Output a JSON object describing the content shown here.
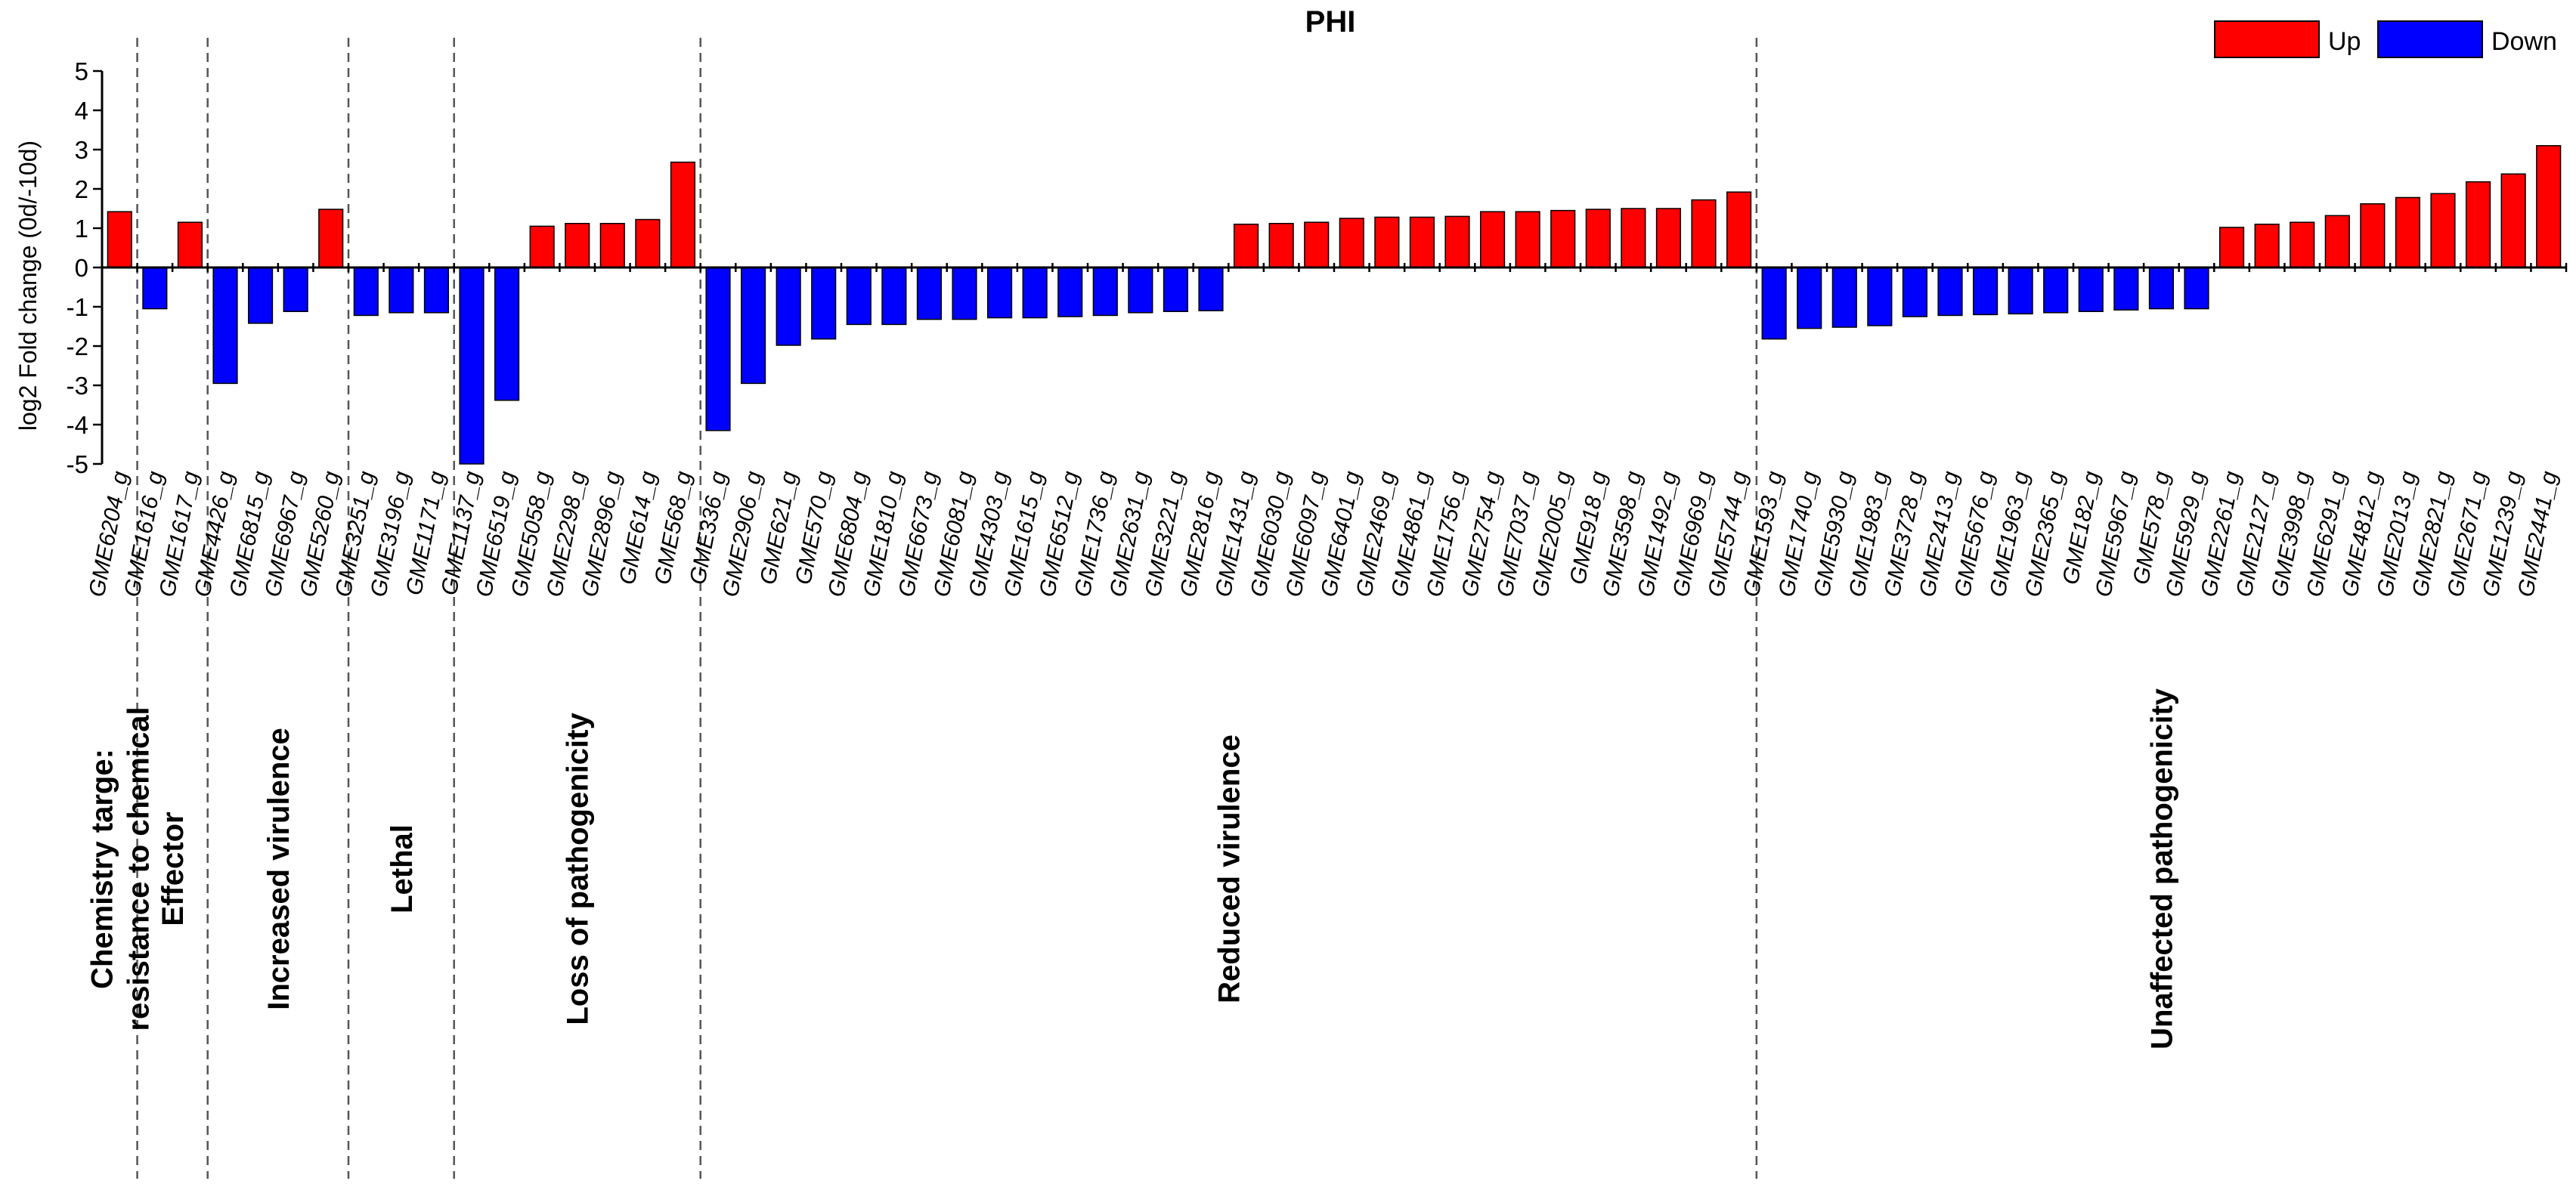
{
  "chart_data": {
    "type": "bar",
    "title": "PHI",
    "ylabel": "log2 Fold change (0d/-10d)",
    "ylim": [
      -5,
      5
    ],
    "yticks": [
      5,
      4,
      3,
      2,
      1,
      0,
      -1,
      -2,
      -3,
      -4,
      -5
    ],
    "legend": {
      "position": "top-right",
      "entries": [
        {
          "label": "Up",
          "color": "#ff0000"
        },
        {
          "label": "Down",
          "color": "#0000ff"
        }
      ]
    },
    "colors": {
      "up": "#ff0000",
      "down": "#0000ff"
    },
    "categories": [
      "GME6204_g",
      "GME1616_g",
      "GME1617_g",
      "GME4426_g",
      "GME6815_g",
      "GME6967_g",
      "GME5260_g",
      "GME3251_g",
      "GME3196_g",
      "GME1171_g",
      "GME1137_g",
      "GME6519_g",
      "GME5058_g",
      "GME2298_g",
      "GME2896_g",
      "GME614_g",
      "GME568_g",
      "GME336_g",
      "GME2906_g",
      "GME621_g",
      "GME570_g",
      "GME6804_g",
      "GME1810_g",
      "GME6673_g",
      "GME6081_g",
      "GME4303_g",
      "GME1615_g",
      "GME6512_g",
      "GME1736_g",
      "GME2631_g",
      "GME3221_g",
      "GME2816_g",
      "GME1431_g",
      "GME6030_g",
      "GME6097_g",
      "GME6401_g",
      "GME2469_g",
      "GME4861_g",
      "GME1756_g",
      "GME2754_g",
      "GME7037_g",
      "GME2005_g",
      "GME918_g",
      "GME3598_g",
      "GME1492_g",
      "GME6969_g",
      "GME5744_g",
      "GME1593_g",
      "GME1740_g",
      "GME5930_g",
      "GME1983_g",
      "GME3728_g",
      "GME2413_g",
      "GME5676_g",
      "GME1963_g",
      "GME2365_g",
      "GME182_g",
      "GME5967_g",
      "GME578_g",
      "GME5929_g",
      "GME2261_g",
      "GME2127_g",
      "GME3998_g",
      "GME6291_g",
      "GME4812_g",
      "GME2013_g",
      "GME2821_g",
      "GME2671_g",
      "GME1239_g",
      "GME2441_g"
    ],
    "values": [
      1.42,
      -1.05,
      1.15,
      -2.95,
      -1.42,
      -1.12,
      1.48,
      -1.22,
      -1.15,
      -1.15,
      -5.0,
      -3.38,
      1.05,
      1.12,
      1.12,
      1.22,
      2.68,
      -4.15,
      -2.95,
      -1.98,
      -1.82,
      -1.45,
      -1.45,
      -1.32,
      -1.32,
      -1.28,
      -1.28,
      -1.25,
      -1.22,
      -1.15,
      -1.12,
      -1.1,
      1.1,
      1.12,
      1.15,
      1.25,
      1.28,
      1.28,
      1.3,
      1.42,
      1.42,
      1.45,
      1.48,
      1.5,
      1.5,
      1.72,
      1.92,
      -1.82,
      -1.55,
      -1.52,
      -1.48,
      -1.25,
      -1.22,
      -1.2,
      -1.18,
      -1.15,
      -1.12,
      -1.08,
      -1.05,
      -1.05,
      1.02,
      1.1,
      1.15,
      1.32,
      1.62,
      1.78,
      1.88,
      2.18,
      2.38,
      3.1
    ],
    "groups": [
      {
        "label": [
          "Chemistry targe:",
          "resistance to chemical"
        ],
        "start": 0,
        "count": 1
      },
      {
        "label": [
          "Effector"
        ],
        "start": 1,
        "count": 2
      },
      {
        "label": [
          "Increased virulence"
        ],
        "start": 3,
        "count": 4
      },
      {
        "label": [
          "Lethal"
        ],
        "start": 7,
        "count": 3
      },
      {
        "label": [
          "Loss of pathogenicity"
        ],
        "start": 10,
        "count": 7
      },
      {
        "label": [
          "Reduced virulence"
        ],
        "start": 17,
        "count": 30
      },
      {
        "label": [
          "Unaffected pathogenicity"
        ],
        "start": 47,
        "count": 23
      }
    ]
  }
}
